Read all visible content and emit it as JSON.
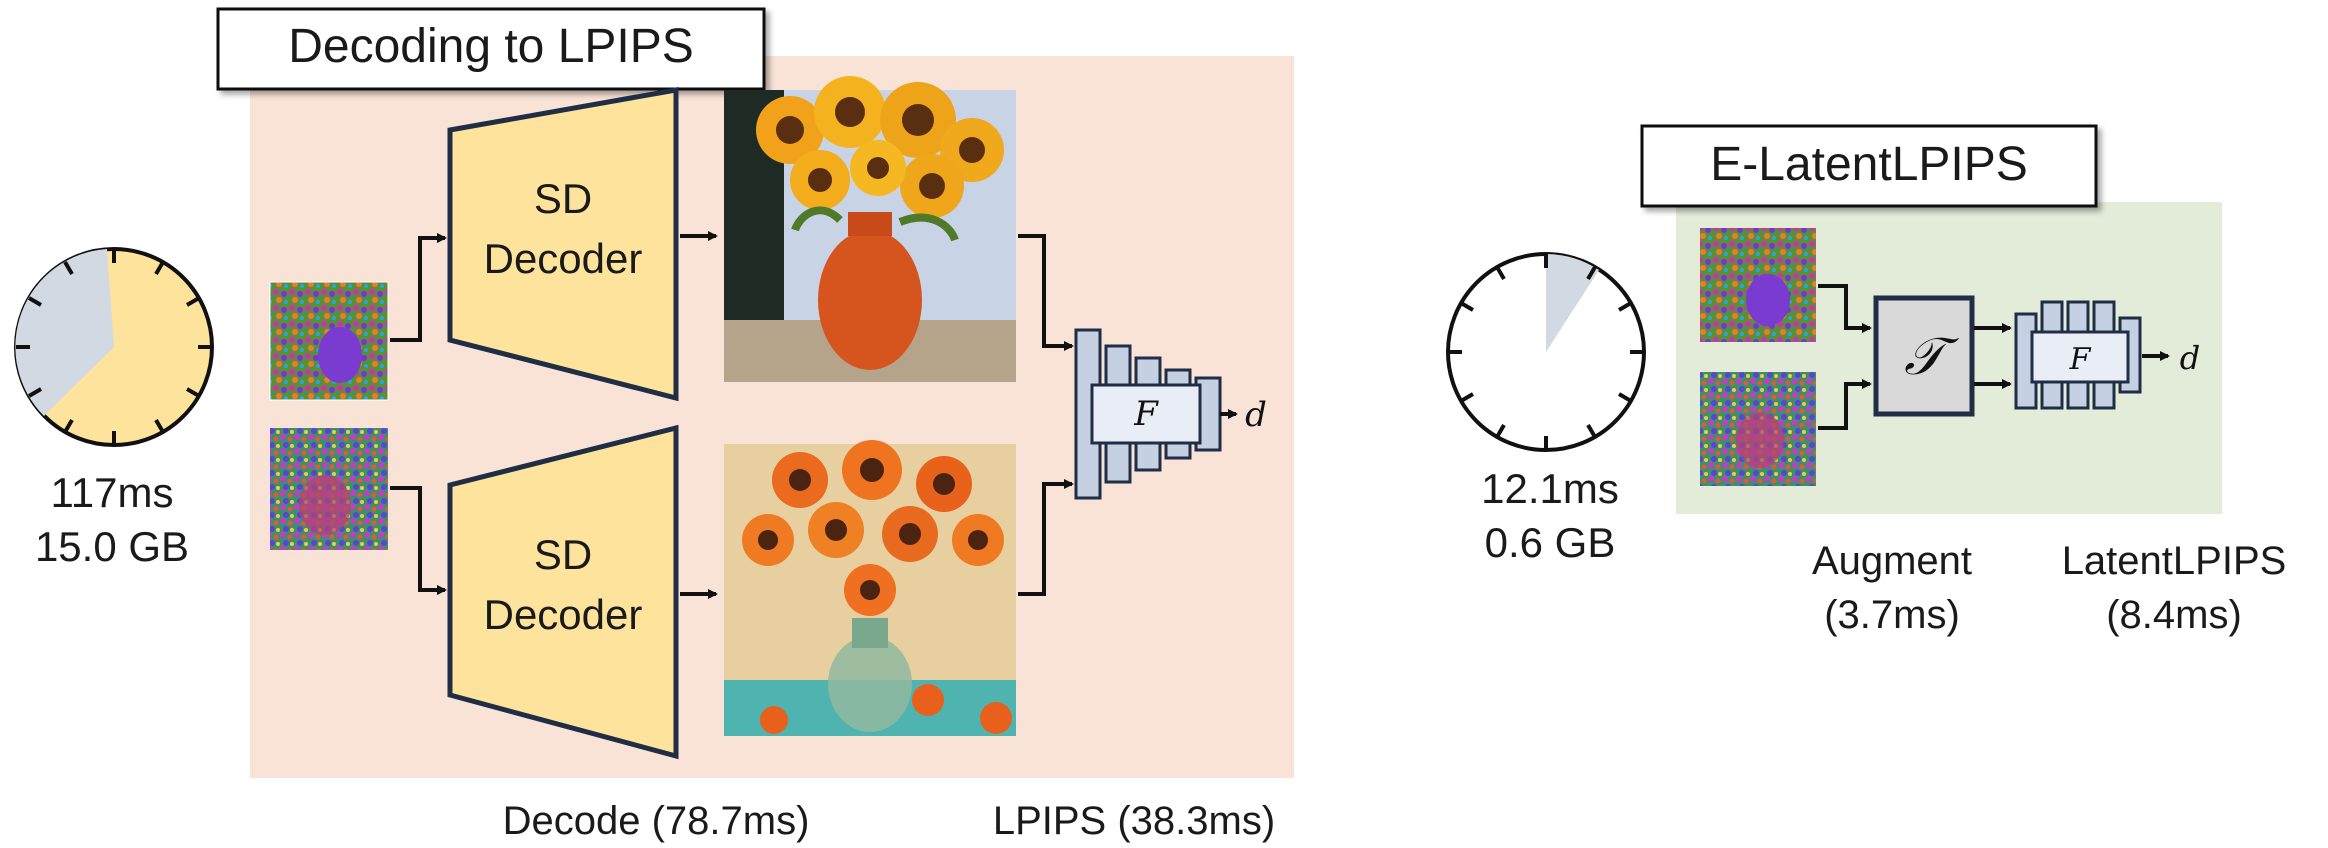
{
  "left_panel": {
    "title": "Decoding to LPIPS",
    "timer": {
      "time": "117ms",
      "memory": "15.0 GB",
      "filled_fraction": 1.0,
      "decode_fraction": 0.673
    },
    "decoder_top": {
      "line1": "SD",
      "line2": "Decoder"
    },
    "decoder_bottom": {
      "line1": "SD",
      "line2": "Decoder"
    },
    "network_label": "F",
    "output_label": "d",
    "caption_decode": "Decode (78.7ms)",
    "caption_lpips": "LPIPS (38.3ms)"
  },
  "right_panel": {
    "title": "E-LatentLPIPS",
    "timer": {
      "time": "12.1ms",
      "memory": "0.6 GB",
      "filled_fraction": 0.103
    },
    "augment_symbol": "𝒯",
    "network_label": "F",
    "output_label": "d",
    "caption_augment_line1": "Augment",
    "caption_augment_line2": "(3.7ms)",
    "caption_latent_line1": "LatentLPIPS",
    "caption_latent_line2": "(8.4ms)"
  },
  "colors": {
    "left_bg": "#f9e3d7",
    "right_bg": "#e2ecd8",
    "decoder_fill": "#fde39c",
    "navy": "#1f2d45",
    "net_fill": "#c5d1e3",
    "net_inner": "#e9eef6",
    "timer_yellow": "#fde39c",
    "timer_gray": "#d3d9e2",
    "augment_fill": "#d9d9d9"
  }
}
